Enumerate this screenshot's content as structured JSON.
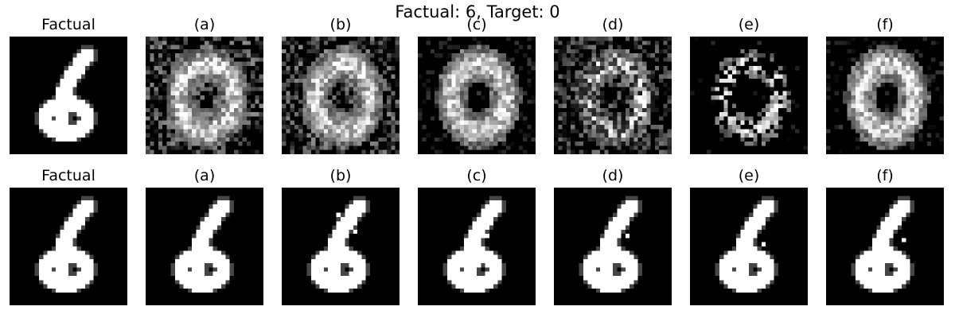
{
  "figure": {
    "suptitle": "Factual: 6, Target: 0"
  },
  "rows": [
    {
      "row_id": "top",
      "panels": [
        {
          "title": "Factual",
          "kind": "factual"
        },
        {
          "title": "(a)",
          "kind": "noisy-zero"
        },
        {
          "title": "(b)",
          "kind": "noisy-zero"
        },
        {
          "title": "(c)",
          "kind": "smooth-zero"
        },
        {
          "title": "(d)",
          "kind": "noisy-fragment"
        },
        {
          "title": "(e)",
          "kind": "sparse-fragment"
        },
        {
          "title": "(f)",
          "kind": "smooth-zero"
        }
      ]
    },
    {
      "row_id": "bottom",
      "panels": [
        {
          "title": "Factual",
          "kind": "factual"
        },
        {
          "title": "(a)",
          "kind": "factual-edit"
        },
        {
          "title": "(b)",
          "kind": "factual-edit"
        },
        {
          "title": "(c)",
          "kind": "factual-edit"
        },
        {
          "title": "(d)",
          "kind": "factual-edit"
        },
        {
          "title": "(e)",
          "kind": "factual-edit"
        },
        {
          "title": "(f)",
          "kind": "factual-edit"
        }
      ]
    }
  ],
  "palette": {
    "background": "#ffffff",
    "image_background": "#000000",
    "stroke": "#ffffff"
  }
}
